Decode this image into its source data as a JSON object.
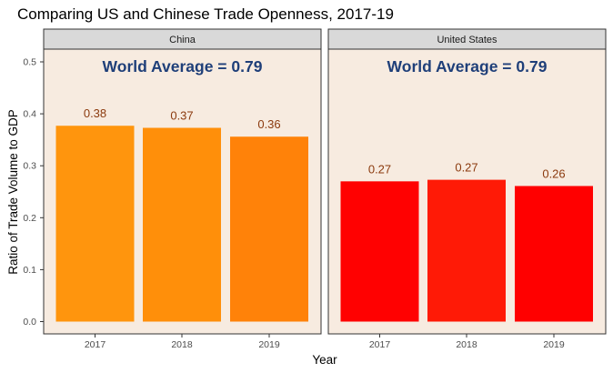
{
  "chart_data": {
    "type": "bar",
    "title": "Comparing US and Chinese Trade Openness, 2017-19",
    "xlabel": "Year",
    "ylabel": "Ratio of Trade Volume to GDP",
    "ylim": [
      0,
      0.5
    ],
    "yticks": [
      "0.0",
      "0.1",
      "0.2",
      "0.3",
      "0.4",
      "0.5"
    ],
    "categories": [
      "2017",
      "2018",
      "2019"
    ],
    "panel_background": "#f7ebe0",
    "strip_background": "#d9d9d9",
    "annotation_color": "#1f3f79",
    "label_color": "#8b3a0e",
    "panels": [
      {
        "name": "China",
        "annotation": "World Average = 0.79",
        "values": [
          0.377,
          0.373,
          0.356
        ],
        "labels": [
          "0.38",
          "0.37",
          "0.36"
        ],
        "colors": [
          "#ff950d",
          "#ff8f0a",
          "#ff8209"
        ]
      },
      {
        "name": "United States",
        "annotation": "World Average = 0.79",
        "values": [
          0.27,
          0.273,
          0.261
        ],
        "labels": [
          "0.27",
          "0.27",
          "0.26"
        ],
        "colors": [
          "#ff0101",
          "#ff1a06",
          "#ff0000"
        ]
      }
    ]
  }
}
